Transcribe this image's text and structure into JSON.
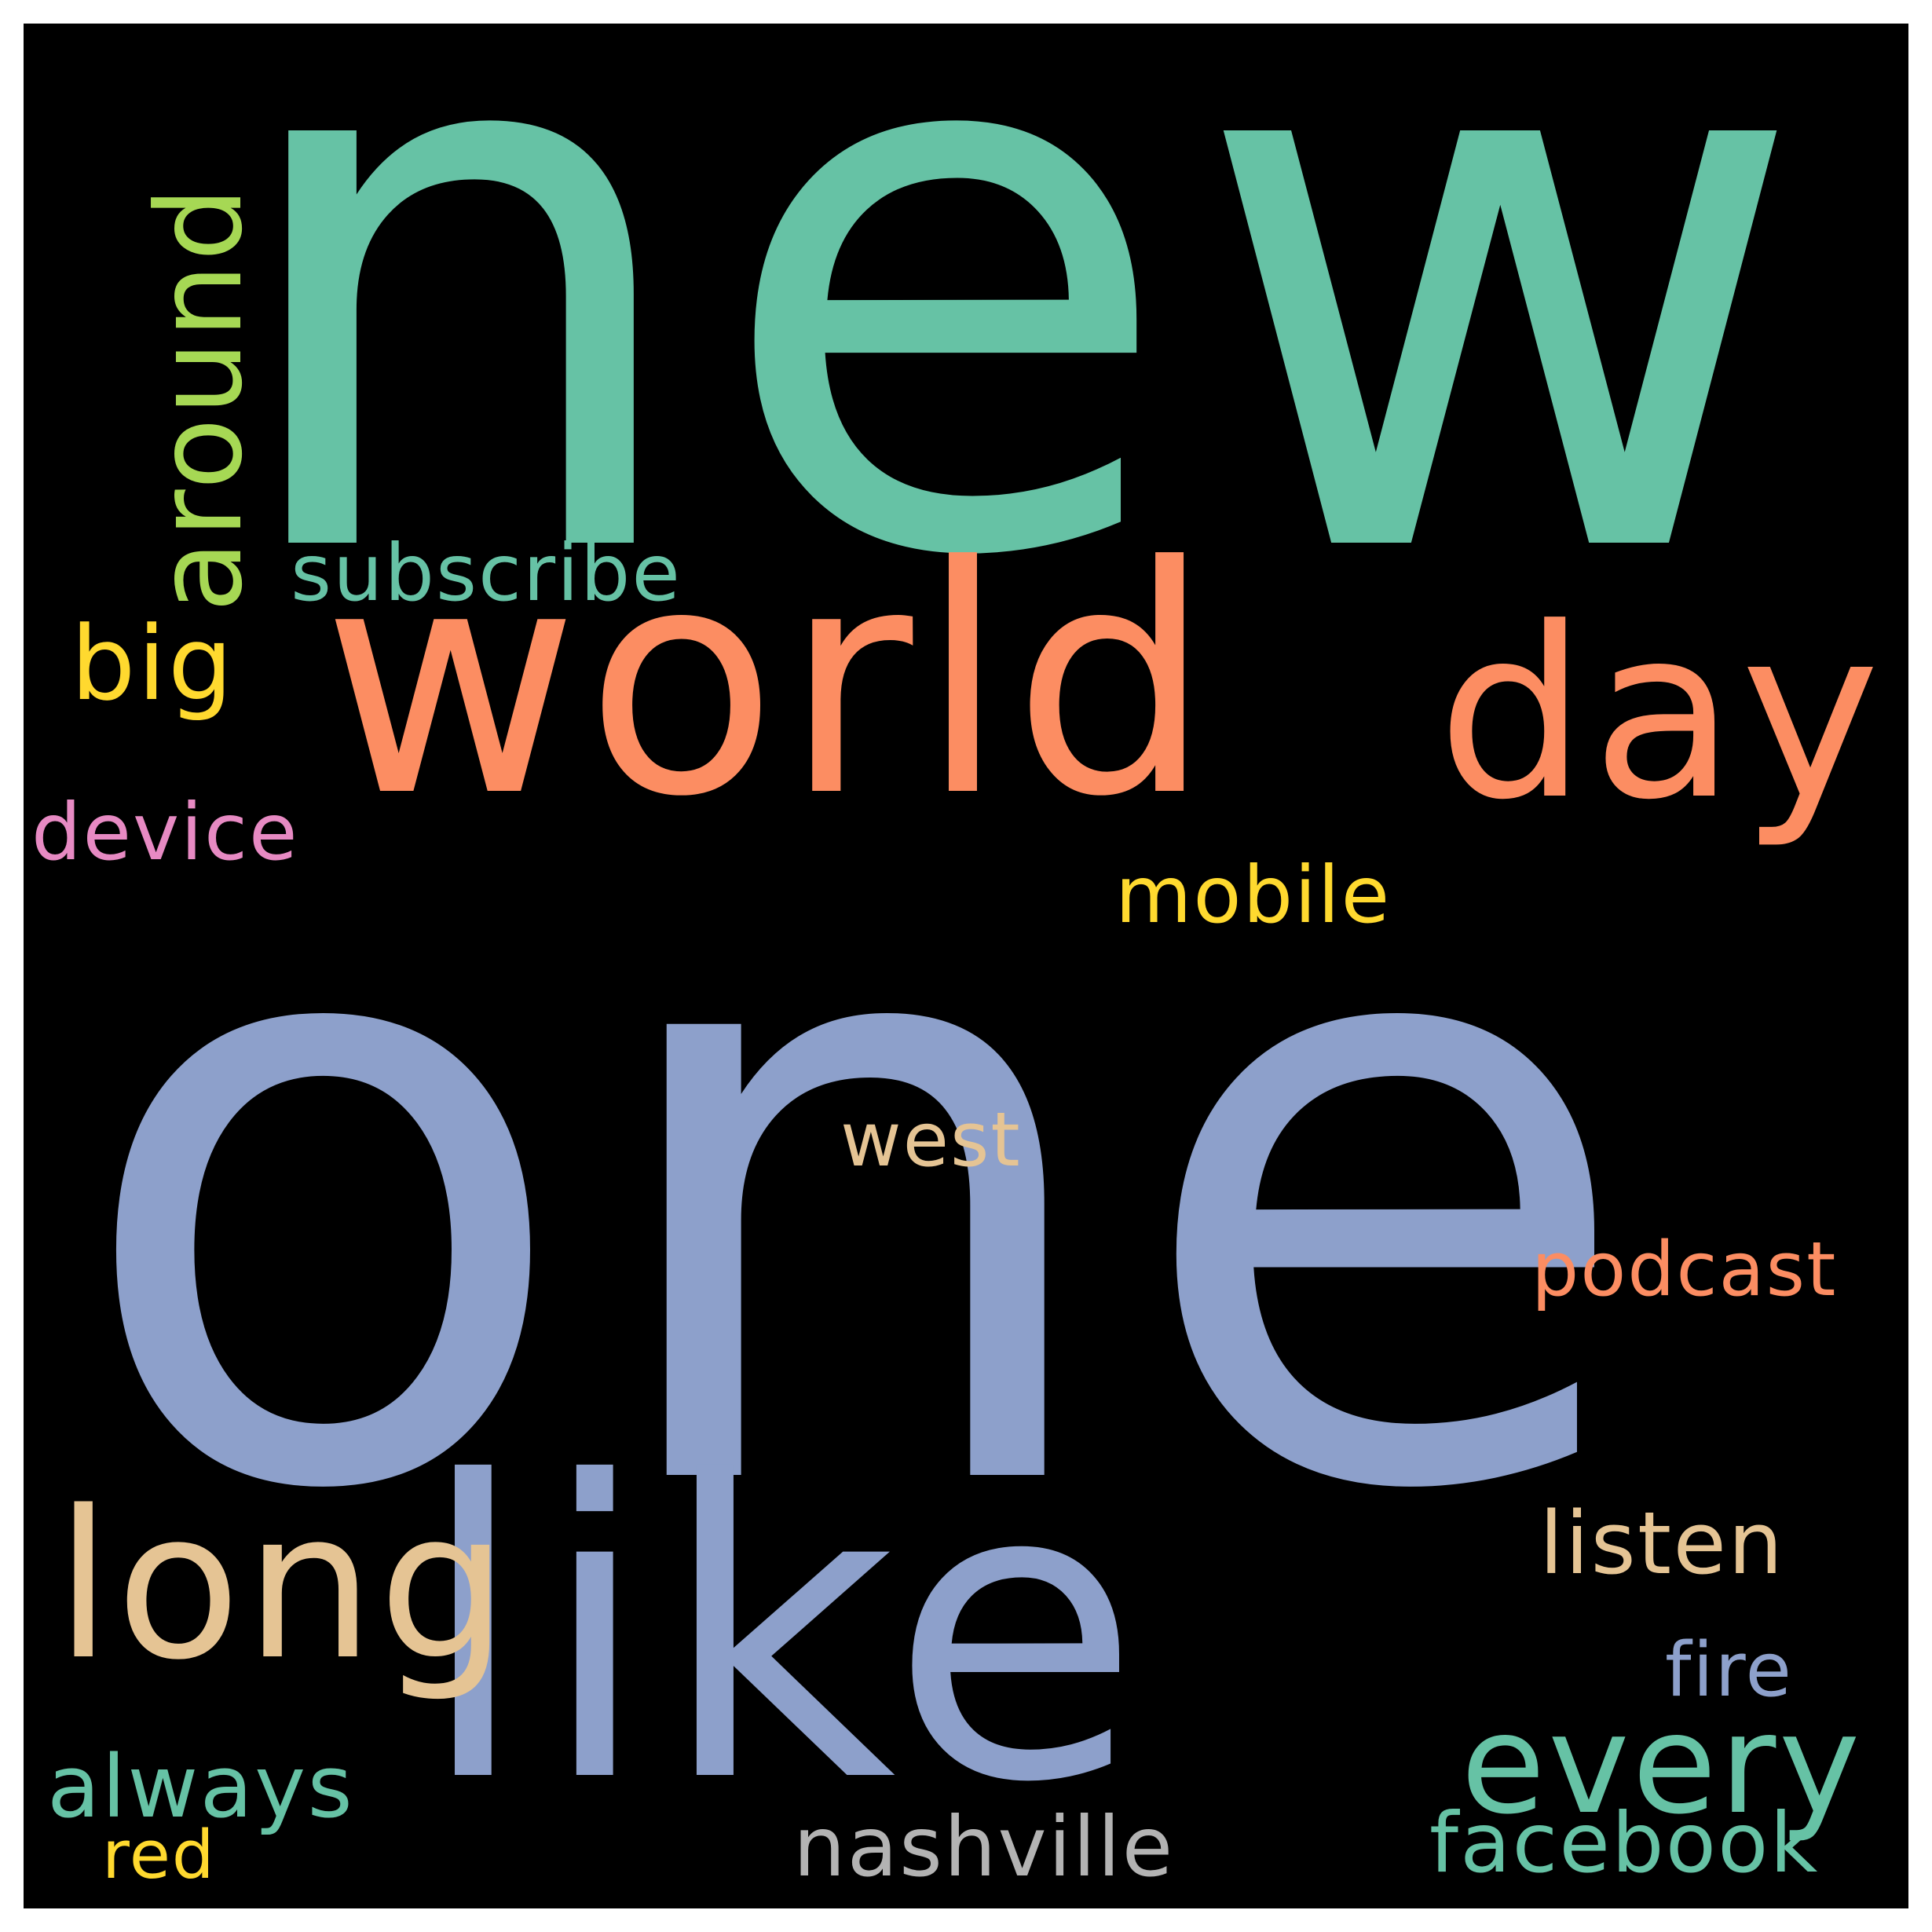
{
  "colors": {
    "background": "#000000",
    "frame": "#ffffff"
  },
  "words": [
    {
      "key": "new",
      "text": "new",
      "color": "#66c2a5"
    },
    {
      "key": "one",
      "text": "one",
      "color": "#8da0cb"
    },
    {
      "key": "world",
      "text": "world",
      "color": "#fc8d62"
    },
    {
      "key": "day",
      "text": "day",
      "color": "#fc8d62"
    },
    {
      "key": "like",
      "text": "like",
      "color": "#8da0cb"
    },
    {
      "key": "long",
      "text": "long",
      "color": "#e5c494"
    },
    {
      "key": "every",
      "text": "every",
      "color": "#66c2a5"
    },
    {
      "key": "around",
      "text": "around",
      "color": "#a6d854",
      "rotated": true
    },
    {
      "key": "big",
      "text": "big",
      "color": "#ffd92f"
    },
    {
      "key": "subscribe",
      "text": "subscribe",
      "color": "#66c2a5"
    },
    {
      "key": "device",
      "text": "device",
      "color": "#e78ac3"
    },
    {
      "key": "mobile",
      "text": "mobile",
      "color": "#ffd92f"
    },
    {
      "key": "west",
      "text": "west",
      "color": "#e5c494"
    },
    {
      "key": "podcast",
      "text": "podcast",
      "color": "#fc8d62"
    },
    {
      "key": "listen",
      "text": "listen",
      "color": "#e5c494"
    },
    {
      "key": "fire",
      "text": "fire",
      "color": "#8da0cb"
    },
    {
      "key": "always",
      "text": "always",
      "color": "#66c2a5"
    },
    {
      "key": "nashville",
      "text": "nashville",
      "color": "#b3b3b3"
    },
    {
      "key": "facebook",
      "text": "facebook",
      "color": "#66c2a5"
    },
    {
      "key": "red",
      "text": "red",
      "color": "#ffd92f"
    }
  ]
}
